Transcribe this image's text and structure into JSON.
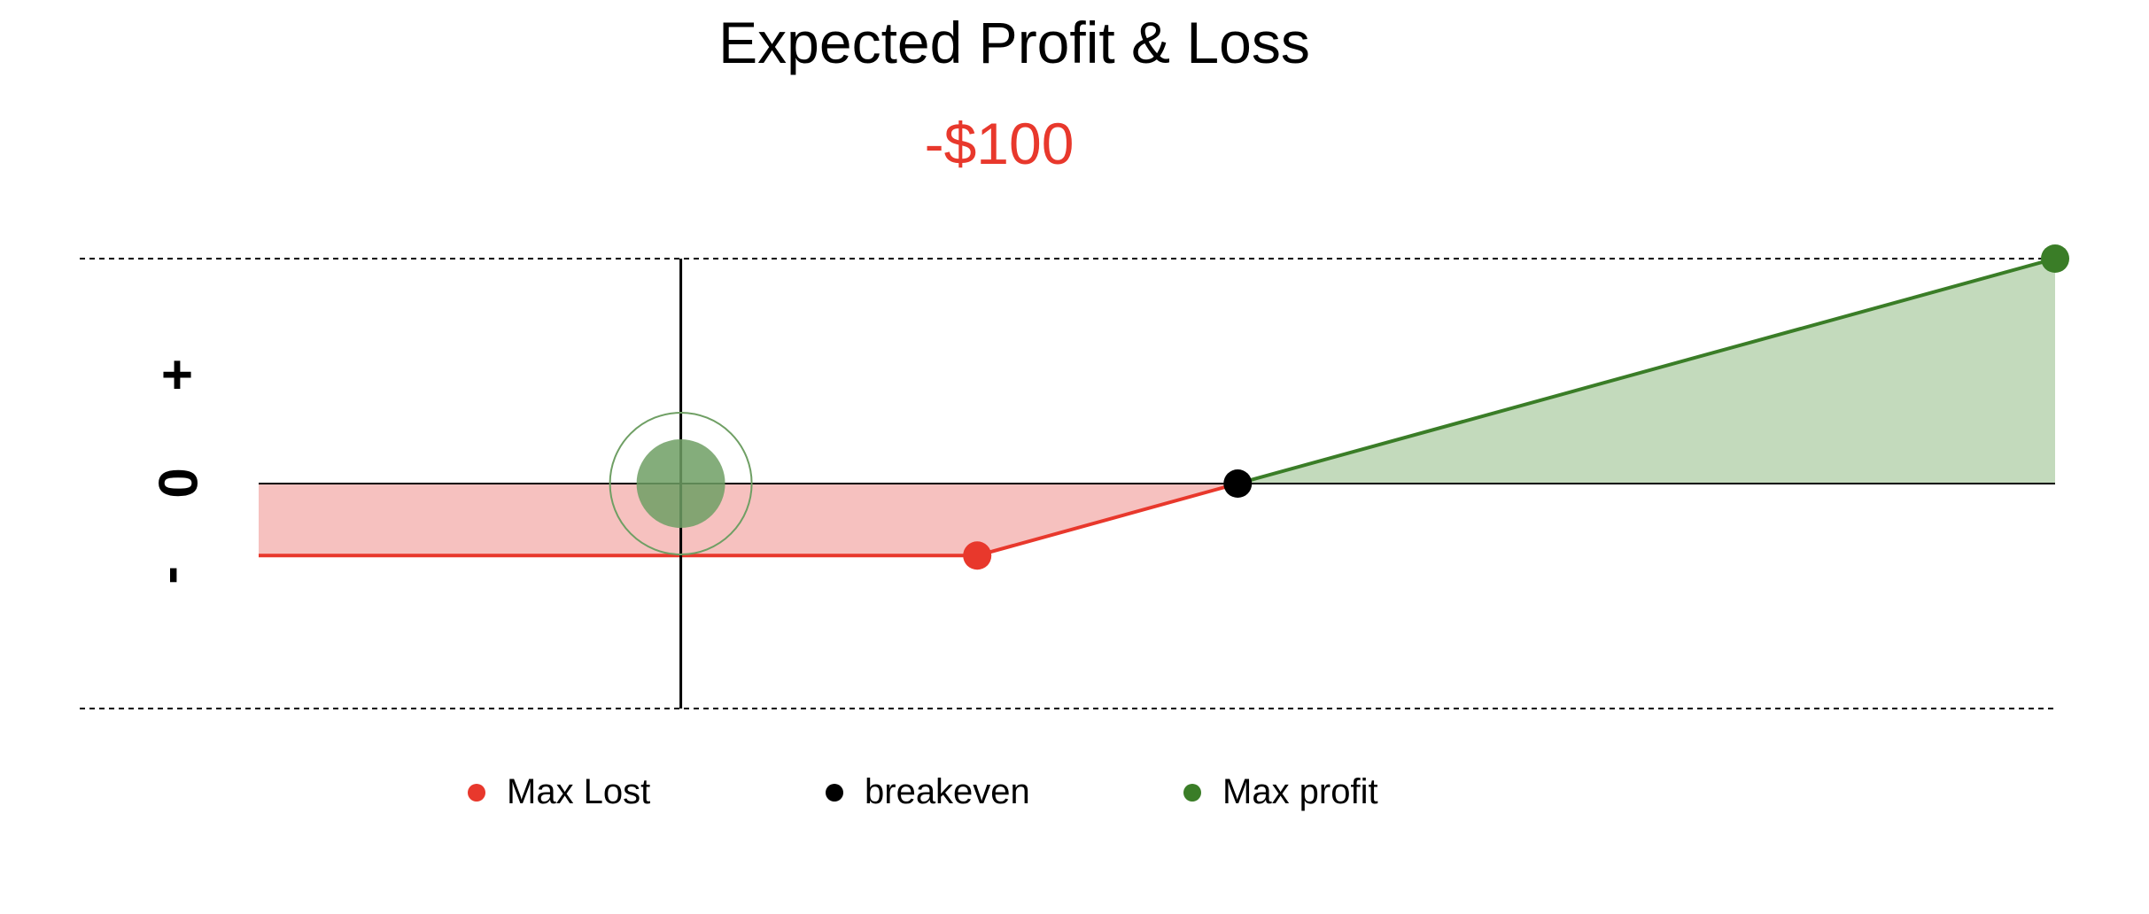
{
  "header": {
    "title": "Expected Profit & Loss",
    "value": "-$100"
  },
  "axis_symbols": {
    "plus": "+",
    "zero": "0",
    "minus": "-"
  },
  "legend": [
    {
      "label": "Max Lost",
      "color": "#e8382c"
    },
    {
      "label": "breakeven",
      "color": "#000000"
    },
    {
      "label": "Max profit",
      "color": "#3a7d27"
    }
  ],
  "colors": {
    "loss": "#e8382c",
    "loss_fill": "#f6c1bf",
    "profit": "#3a7d27",
    "profit_fill": "#c3dabc",
    "marker_fill": "#6f9f64",
    "value_text": "#e8382c"
  },
  "chart_data": {
    "type": "line",
    "title": "Expected Profit & Loss",
    "xlabel": "",
    "ylabel": "",
    "ylim": [
      -1,
      1
    ],
    "xlim": [
      0,
      1
    ],
    "payoff_line": [
      {
        "x": 0.0,
        "y": -0.32
      },
      {
        "x": 0.4,
        "y": -0.32
      },
      {
        "x": 0.545,
        "y": 0.0
      },
      {
        "x": 1.0,
        "y": 1.0
      }
    ],
    "points": [
      {
        "name": "Max Lost",
        "x": 0.4,
        "y": -0.32
      },
      {
        "name": "breakeven",
        "x": 0.545,
        "y": 0.0
      },
      {
        "name": "Max profit",
        "x": 1.0,
        "y": 1.0
      }
    ],
    "current_position": {
      "x": 0.235,
      "y": 0.0
    },
    "grid": "dashed top and bottom bounds"
  }
}
